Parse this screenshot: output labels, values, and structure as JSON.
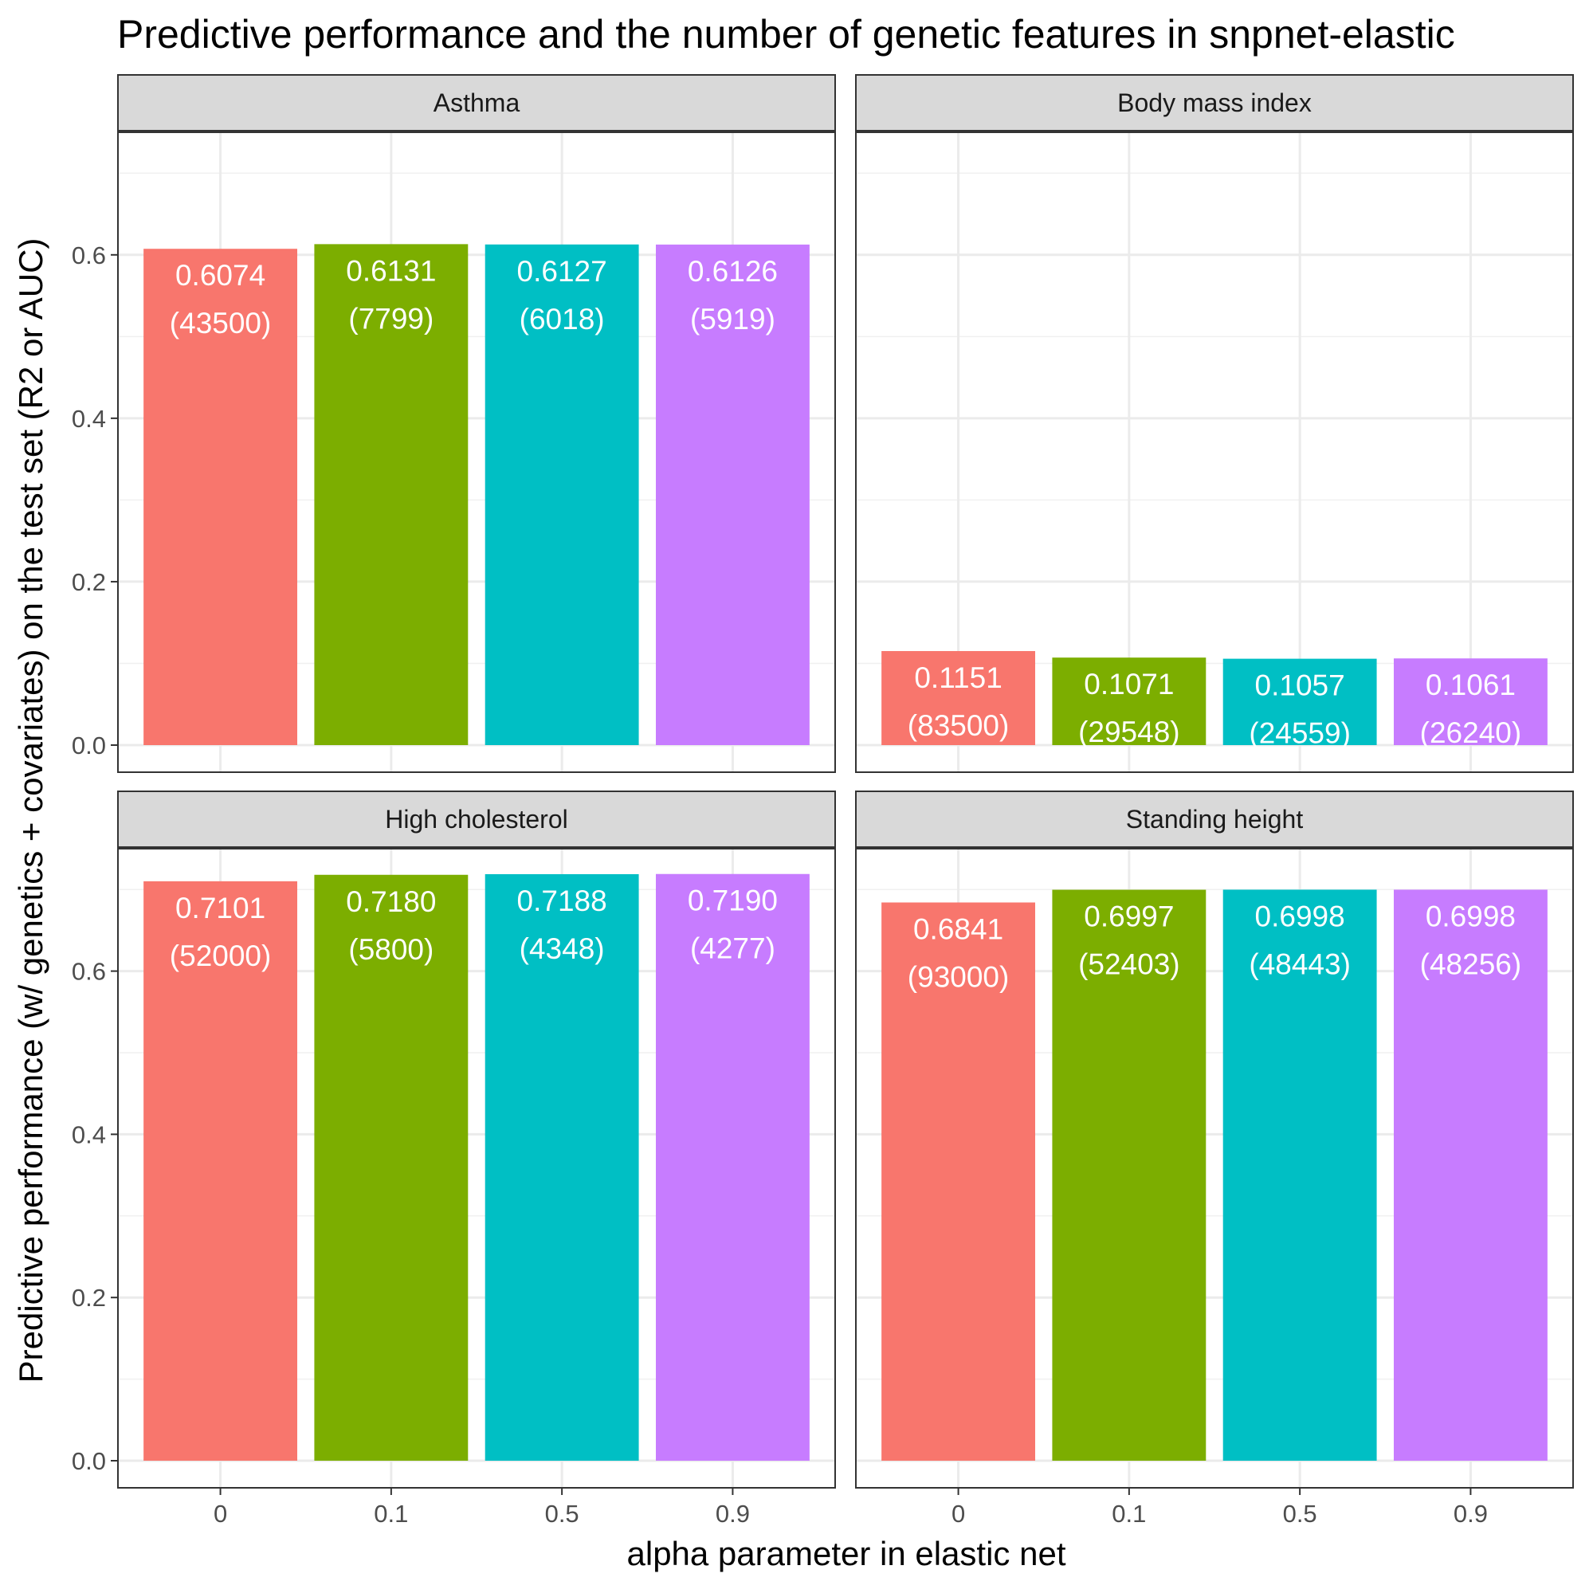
{
  "chart_data": {
    "type": "bar",
    "title": "Predictive performance and the number of genetic features in snpnet-elastic",
    "xlabel": "alpha parameter in elastic net",
    "ylabel": "Predictive performance (w/ genetics + covariates) on the test set (R2 or AUC)",
    "categories": [
      "0",
      "0.1",
      "0.5",
      "0.9"
    ],
    "ylim": [
      0,
      0.75
    ],
    "yticks": [
      0.0,
      0.2,
      0.4,
      0.6
    ],
    "ytick_labels": [
      "0.0",
      "0.2",
      "0.4",
      "0.6"
    ],
    "grid": true,
    "bar_colors": [
      "#F8766D",
      "#7CAE00",
      "#00BFC4",
      "#C77CFF"
    ],
    "panels": [
      {
        "name": "Asthma",
        "values": [
          0.6074,
          0.6131,
          0.6127,
          0.6126
        ],
        "value_labels": [
          "0.6074",
          "0.6131",
          "0.6127",
          "0.6126"
        ],
        "feature_labels": [
          "(43500)",
          "(7799)",
          "(6018)",
          "(5919)"
        ]
      },
      {
        "name": "Body mass index",
        "values": [
          0.1151,
          0.1071,
          0.1057,
          0.1061
        ],
        "value_labels": [
          "0.1151",
          "0.1071",
          "0.1057",
          "0.1061"
        ],
        "feature_labels": [
          "(83500)",
          "(29548)",
          "(24559)",
          "(26240)"
        ]
      },
      {
        "name": "High cholesterol",
        "values": [
          0.7101,
          0.718,
          0.7188,
          0.719
        ],
        "value_labels": [
          "0.7101",
          "0.7180",
          "0.7188",
          "0.7190"
        ],
        "feature_labels": [
          "(52000)",
          "(5800)",
          "(4348)",
          "(4277)"
        ]
      },
      {
        "name": "Standing height",
        "values": [
          0.6841,
          0.6997,
          0.6998,
          0.6998
        ],
        "value_labels": [
          "0.6841",
          "0.6997",
          "0.6998",
          "0.6998"
        ],
        "feature_labels": [
          "(93000)",
          "(52403)",
          "(48443)",
          "(48256)"
        ]
      }
    ]
  }
}
